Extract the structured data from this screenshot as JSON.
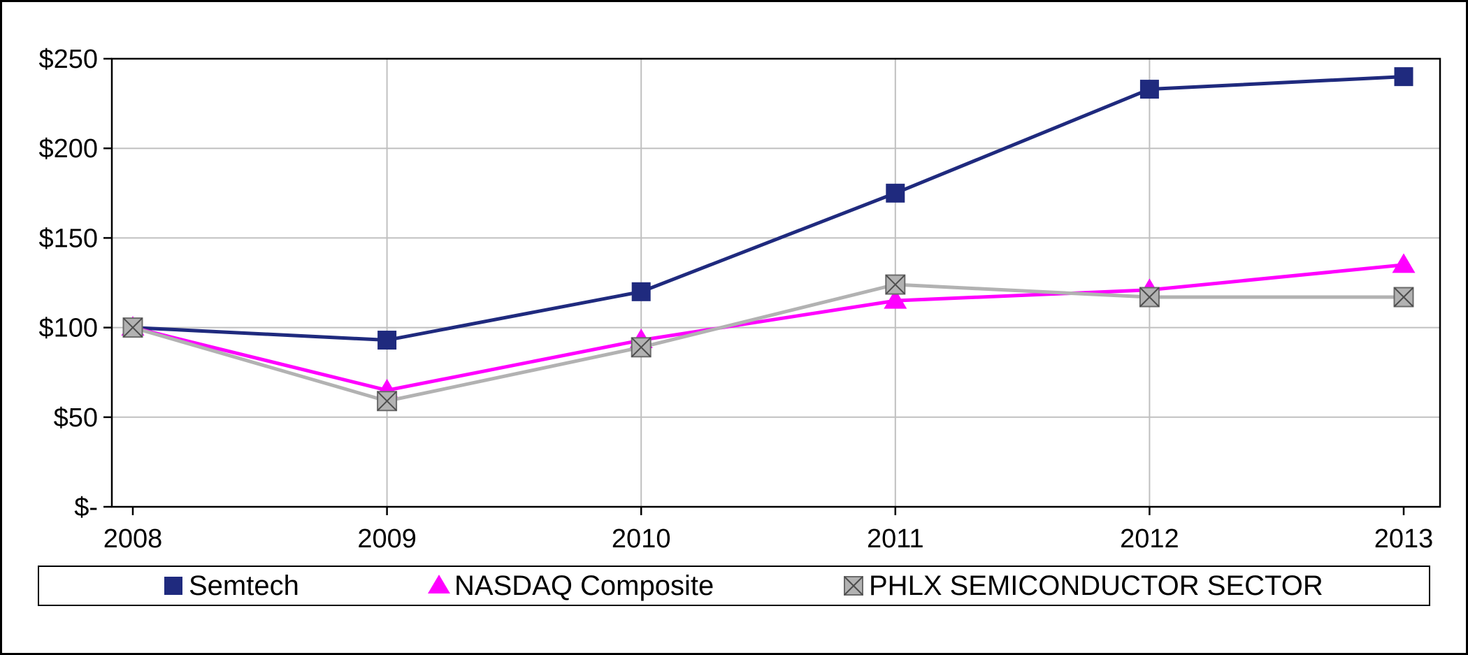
{
  "chart_data": {
    "type": "line",
    "title": "",
    "xlabel": "",
    "ylabel": "",
    "categories": [
      "2008",
      "2009",
      "2010",
      "2011",
      "2012",
      "2013"
    ],
    "y_ticks": [
      "$-",
      "$50",
      "$100",
      "$150",
      "$200",
      "$250"
    ],
    "y_tick_values": [
      0,
      50,
      100,
      150,
      200,
      250
    ],
    "ylim": [
      0,
      250
    ],
    "grid": true,
    "legend_position": "bottom",
    "series": [
      {
        "name": "Semtech",
        "color": "#1F2A7E",
        "marker": "square",
        "values": [
          100,
          93,
          120,
          175,
          233,
          240
        ]
      },
      {
        "name": "NASDAQ Composite",
        "color": "#FF00FF",
        "marker": "triangle",
        "values": [
          100,
          65,
          93,
          115,
          121,
          135
        ]
      },
      {
        "name": "PHLX SEMICONDUCTOR SECTOR",
        "color": "#B2B2B2",
        "marker": "x-square",
        "values": [
          100,
          59,
          89,
          124,
          117,
          117
        ]
      }
    ]
  },
  "colors": {
    "grid": "#C0C0C0",
    "axis": "#000000",
    "background": "#FFFFFF",
    "x_square_border": "#6B6B6B",
    "x_square_cross": "#4D4D4D"
  }
}
